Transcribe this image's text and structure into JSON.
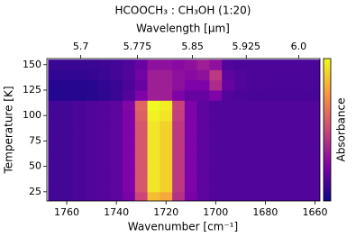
{
  "chart_data": {
    "type": "heatmap",
    "title": "HCOOCH₃ : CH₃OH (1:20)",
    "xlabel": "Wavenumber [cm⁻¹]",
    "x2label": "Wavelength [μm]",
    "ylabel": "Temperature [K]",
    "colorbar_label": "Absorbance",
    "colormap": "plasma",
    "clim": [
      0,
      1
    ],
    "xlim": [
      1768,
      1658
    ],
    "xticks": [
      1760,
      1740,
      1720,
      1700,
      1680,
      1660
    ],
    "x2lim": [
      5.656,
      6.031
    ],
    "x2_scale": "reciprocal",
    "x2ticks": [
      5.7,
      5.775,
      5.85,
      5.925,
      {
        "value": 6,
        "label": "6.0"
      }
    ],
    "ylim": [
      16,
      156
    ],
    "yticks": [
      25,
      50,
      75,
      100,
      125,
      150
    ],
    "x": [
      1765,
      1760,
      1755,
      1750,
      1745,
      1740,
      1735,
      1730,
      1725,
      1720,
      1715,
      1710,
      1705,
      1700,
      1695,
      1690,
      1685,
      1680,
      1675,
      1670,
      1665,
      1660
    ],
    "y": [
      20,
      30,
      40,
      50,
      60,
      70,
      80,
      90,
      100,
      110,
      120,
      130,
      140,
      150
    ],
    "z": [
      [
        0.12,
        0.12,
        0.14,
        0.15,
        0.16,
        0.18,
        0.24,
        0.5,
        0.85,
        0.8,
        0.42,
        0.24,
        0.18,
        0.15,
        0.15,
        0.15,
        0.15,
        0.15,
        0.15,
        0.15,
        0.15,
        0.15
      ],
      [
        0.12,
        0.12,
        0.14,
        0.15,
        0.16,
        0.18,
        0.25,
        0.55,
        0.95,
        0.9,
        0.45,
        0.25,
        0.18,
        0.15,
        0.15,
        0.15,
        0.15,
        0.15,
        0.15,
        0.15,
        0.15,
        0.15
      ],
      [
        0.12,
        0.12,
        0.14,
        0.15,
        0.16,
        0.18,
        0.25,
        0.55,
        0.95,
        0.9,
        0.45,
        0.25,
        0.18,
        0.15,
        0.15,
        0.15,
        0.15,
        0.15,
        0.15,
        0.15,
        0.15,
        0.15
      ],
      [
        0.12,
        0.12,
        0.14,
        0.15,
        0.16,
        0.18,
        0.25,
        0.55,
        0.95,
        0.9,
        0.45,
        0.25,
        0.18,
        0.15,
        0.15,
        0.15,
        0.15,
        0.15,
        0.15,
        0.15,
        0.15,
        0.15
      ],
      [
        0.12,
        0.12,
        0.14,
        0.15,
        0.16,
        0.18,
        0.25,
        0.55,
        0.95,
        0.9,
        0.45,
        0.25,
        0.18,
        0.15,
        0.15,
        0.15,
        0.15,
        0.15,
        0.15,
        0.15,
        0.15,
        0.15
      ],
      [
        0.12,
        0.12,
        0.14,
        0.15,
        0.16,
        0.18,
        0.25,
        0.55,
        0.95,
        0.9,
        0.45,
        0.25,
        0.18,
        0.15,
        0.15,
        0.15,
        0.15,
        0.15,
        0.15,
        0.15,
        0.15,
        0.15
      ],
      [
        0.12,
        0.12,
        0.14,
        0.15,
        0.16,
        0.18,
        0.25,
        0.55,
        0.95,
        0.9,
        0.45,
        0.25,
        0.18,
        0.15,
        0.15,
        0.15,
        0.15,
        0.15,
        0.15,
        0.15,
        0.15,
        0.15
      ],
      [
        0.12,
        0.12,
        0.14,
        0.15,
        0.16,
        0.18,
        0.25,
        0.55,
        0.95,
        0.9,
        0.45,
        0.25,
        0.18,
        0.15,
        0.15,
        0.15,
        0.15,
        0.15,
        0.15,
        0.15,
        0.15,
        0.15
      ],
      [
        0.12,
        0.12,
        0.14,
        0.15,
        0.16,
        0.18,
        0.25,
        0.58,
        0.98,
        0.95,
        0.47,
        0.25,
        0.18,
        0.15,
        0.15,
        0.15,
        0.15,
        0.15,
        0.15,
        0.15,
        0.15,
        0.15
      ],
      [
        0.12,
        0.12,
        0.14,
        0.15,
        0.16,
        0.18,
        0.26,
        0.6,
        1.0,
        0.97,
        0.48,
        0.25,
        0.18,
        0.15,
        0.15,
        0.15,
        0.15,
        0.15,
        0.15,
        0.15,
        0.15,
        0.15
      ],
      [
        0.05,
        0.05,
        0.05,
        0.06,
        0.07,
        0.1,
        0.15,
        0.25,
        0.35,
        0.35,
        0.25,
        0.2,
        0.2,
        0.25,
        0.15,
        0.14,
        0.13,
        0.13,
        0.13,
        0.13,
        0.13,
        0.13
      ],
      [
        0.05,
        0.05,
        0.05,
        0.06,
        0.08,
        0.1,
        0.14,
        0.2,
        0.35,
        0.35,
        0.3,
        0.25,
        0.25,
        0.4,
        0.2,
        0.15,
        0.14,
        0.14,
        0.14,
        0.14,
        0.14,
        0.14
      ],
      [
        0.08,
        0.08,
        0.08,
        0.09,
        0.1,
        0.12,
        0.15,
        0.22,
        0.35,
        0.35,
        0.3,
        0.28,
        0.3,
        0.45,
        0.18,
        0.15,
        0.14,
        0.14,
        0.14,
        0.14,
        0.14,
        0.14
      ],
      [
        0.1,
        0.1,
        0.1,
        0.1,
        0.11,
        0.12,
        0.15,
        0.2,
        0.3,
        0.3,
        0.28,
        0.3,
        0.35,
        0.3,
        0.15,
        0.14,
        0.14,
        0.14,
        0.14,
        0.14,
        0.14,
        0.14
      ]
    ]
  }
}
